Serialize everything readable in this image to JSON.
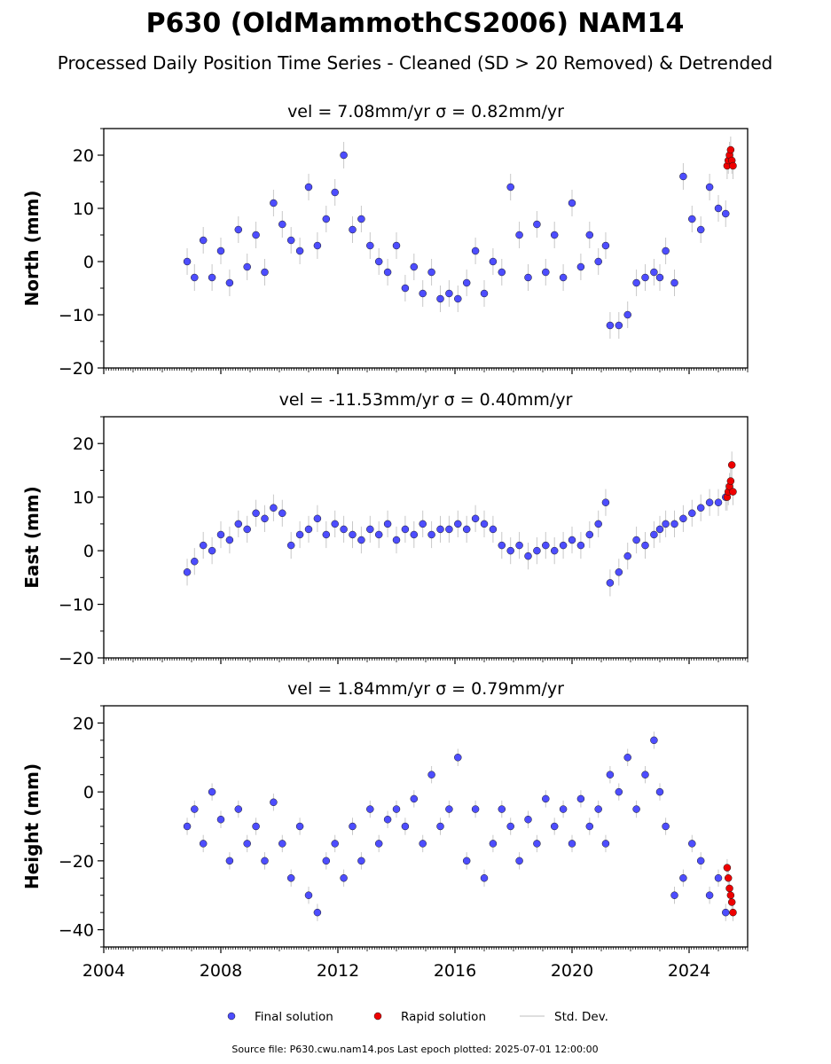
{
  "figure": {
    "title": "P630 (OldMammothCS2006) NAM14",
    "subtitle": "Processed Daily Position Time Series - Cleaned (SD > 20 Removed) & Detrended",
    "footer": "Source file: P630.cwu.nam14.pos  Last epoch plotted: 2025-07-01 12:00:00",
    "legend": [
      {
        "label": "Final solution",
        "color": "#4d4dff",
        "marker": "dot"
      },
      {
        "label": "Rapid solution",
        "color": "#ee0000",
        "marker": "dot"
      },
      {
        "label": "Std. Dev.",
        "color": "#d3d3d3",
        "marker": "line"
      }
    ],
    "colors": {
      "final": "#4d4dff",
      "rapid": "#ee0000",
      "stddev": "#c8c8c8",
      "edge": "#1a1a1a"
    }
  },
  "chart_data": [
    {
      "type": "scatter",
      "ylabel": "North (mm)",
      "velocity_label": "vel = 7.08mm/yr   σ = 0.82mm/yr",
      "xlim": [
        2004,
        2026
      ],
      "ylim": [
        -20,
        25
      ],
      "yticks": [
        -20,
        -10,
        0,
        10,
        20
      ],
      "ytick_labels": [
        "−20",
        "−10",
        "0",
        "10",
        "20"
      ],
      "x_tick_labels_shown": false,
      "series": [
        {
          "name": "Final solution",
          "role": "final",
          "x": [
            2006.85,
            2007.1,
            2007.4,
            2007.7,
            2008.0,
            2008.3,
            2008.6,
            2008.9,
            2009.2,
            2009.5,
            2009.8,
            2010.1,
            2010.4,
            2010.7,
            2011.0,
            2011.3,
            2011.6,
            2011.9,
            2012.2,
            2012.5,
            2012.8,
            2013.1,
            2013.4,
            2013.7,
            2014.0,
            2014.3,
            2014.6,
            2014.9,
            2015.2,
            2015.5,
            2015.8,
            2016.1,
            2016.4,
            2016.7,
            2017.0,
            2017.3,
            2017.6,
            2017.9,
            2018.2,
            2018.5,
            2018.8,
            2019.1,
            2019.4,
            2019.7,
            2020.0,
            2020.3,
            2020.6,
            2020.9,
            2021.15,
            2021.3,
            2021.6,
            2021.9,
            2022.2,
            2022.5,
            2022.8,
            2023.0,
            2023.2,
            2023.5,
            2023.8,
            2024.1,
            2024.4,
            2024.7,
            2025.0,
            2025.25
          ],
          "y": [
            0,
            -3,
            4,
            -3,
            2,
            -4,
            6,
            -1,
            5,
            -2,
            11,
            7,
            4,
            2,
            14,
            3,
            8,
            13,
            20,
            6,
            8,
            3,
            0,
            -2,
            3,
            -5,
            -1,
            -6,
            -2,
            -7,
            -6,
            -7,
            -4,
            2,
            -6,
            0,
            -2,
            14,
            5,
            -3,
            7,
            -2,
            5,
            -3,
            11,
            -1,
            5,
            0,
            3,
            -12,
            -12,
            -10,
            -4,
            -3,
            -2,
            -3,
            2,
            -4,
            16,
            8,
            6,
            14,
            10,
            9
          ],
          "marker_size": 4
        },
        {
          "name": "Rapid solution",
          "role": "rapid",
          "x": [
            2025.3,
            2025.34,
            2025.38,
            2025.42,
            2025.46,
            2025.5
          ],
          "y": [
            18,
            19,
            20,
            21,
            19,
            18
          ],
          "marker_size": 4
        }
      ]
    },
    {
      "type": "scatter",
      "ylabel": "East (mm)",
      "velocity_label": "vel = -11.53mm/yr   σ = 0.40mm/yr",
      "xlim": [
        2004,
        2026
      ],
      "ylim": [
        -20,
        25
      ],
      "yticks": [
        -20,
        -10,
        0,
        10,
        20
      ],
      "ytick_labels": [
        "−20",
        "−10",
        "0",
        "10",
        "20"
      ],
      "x_tick_labels_shown": false,
      "series": [
        {
          "name": "Final solution",
          "role": "final",
          "x": [
            2006.85,
            2007.1,
            2007.4,
            2007.7,
            2008.0,
            2008.3,
            2008.6,
            2008.9,
            2009.2,
            2009.5,
            2009.8,
            2010.1,
            2010.4,
            2010.7,
            2011.0,
            2011.3,
            2011.6,
            2011.9,
            2012.2,
            2012.5,
            2012.8,
            2013.1,
            2013.4,
            2013.7,
            2014.0,
            2014.3,
            2014.6,
            2014.9,
            2015.2,
            2015.5,
            2015.8,
            2016.1,
            2016.4,
            2016.7,
            2017.0,
            2017.3,
            2017.6,
            2017.9,
            2018.2,
            2018.5,
            2018.8,
            2019.1,
            2019.4,
            2019.7,
            2020.0,
            2020.3,
            2020.6,
            2020.9,
            2021.15,
            2021.3,
            2021.6,
            2021.9,
            2022.2,
            2022.5,
            2022.8,
            2023.0,
            2023.2,
            2023.5,
            2023.8,
            2024.1,
            2024.4,
            2024.7,
            2025.0,
            2025.25
          ],
          "y": [
            -4,
            -2,
            1,
            0,
            3,
            2,
            5,
            4,
            7,
            6,
            8,
            7,
            1,
            3,
            4,
            6,
            3,
            5,
            4,
            3,
            2,
            4,
            3,
            5,
            2,
            4,
            3,
            5,
            3,
            4,
            4,
            5,
            4,
            6,
            5,
            4,
            1,
            0,
            1,
            -1,
            0,
            1,
            0,
            1,
            2,
            1,
            3,
            5,
            9,
            -6,
            -4,
            -1,
            2,
            1,
            3,
            4,
            5,
            5,
            6,
            7,
            8,
            9,
            9,
            10
          ],
          "marker_size": 4
        },
        {
          "name": "Rapid solution",
          "role": "rapid",
          "x": [
            2025.3,
            2025.34,
            2025.38,
            2025.42,
            2025.46,
            2025.5
          ],
          "y": [
            10,
            11,
            12,
            13,
            16,
            11
          ],
          "marker_size": 4
        }
      ]
    },
    {
      "type": "scatter",
      "ylabel": "Height (mm)",
      "velocity_label": "vel = 1.84mm/yr   σ = 0.79mm/yr",
      "xlim": [
        2004,
        2026
      ],
      "ylim": [
        -45,
        25
      ],
      "yticks": [
        -40,
        -20,
        0,
        20
      ],
      "ytick_labels": [
        "−40",
        "−20",
        "0",
        "20"
      ],
      "x_tick_labels_shown": true,
      "xticks": [
        2004,
        2008,
        2012,
        2016,
        2020,
        2024
      ],
      "xtick_labels": [
        "2004",
        "2008",
        "2012",
        "2016",
        "2020",
        "2024"
      ],
      "series": [
        {
          "name": "Final solution",
          "role": "final",
          "x": [
            2006.85,
            2007.1,
            2007.4,
            2007.7,
            2008.0,
            2008.3,
            2008.6,
            2008.9,
            2009.2,
            2009.5,
            2009.8,
            2010.1,
            2010.4,
            2010.7,
            2011.0,
            2011.3,
            2011.6,
            2011.9,
            2012.2,
            2012.5,
            2012.8,
            2013.1,
            2013.4,
            2013.7,
            2014.0,
            2014.3,
            2014.6,
            2014.9,
            2015.2,
            2015.5,
            2015.8,
            2016.1,
            2016.4,
            2016.7,
            2017.0,
            2017.3,
            2017.6,
            2017.9,
            2018.2,
            2018.5,
            2018.8,
            2019.1,
            2019.4,
            2019.7,
            2020.0,
            2020.3,
            2020.6,
            2020.9,
            2021.15,
            2021.3,
            2021.6,
            2021.9,
            2022.2,
            2022.5,
            2022.8,
            2023.0,
            2023.2,
            2023.5,
            2023.8,
            2024.1,
            2024.4,
            2024.7,
            2025.0,
            2025.25
          ],
          "y": [
            -10,
            -5,
            -15,
            0,
            -8,
            -20,
            -5,
            -15,
            -10,
            -20,
            -3,
            -15,
            -25,
            -10,
            -30,
            -35,
            -20,
            -15,
            -25,
            -10,
            -20,
            -5,
            -15,
            -8,
            -5,
            -10,
            -2,
            -15,
            5,
            -10,
            -5,
            10,
            -20,
            -5,
            -25,
            -15,
            -5,
            -10,
            -20,
            -8,
            -15,
            -2,
            -10,
            -5,
            -15,
            -2,
            -10,
            -5,
            -15,
            5,
            0,
            10,
            -5,
            5,
            15,
            0,
            -10,
            -30,
            -25,
            -15,
            -20,
            -30,
            -25,
            -35
          ],
          "marker_size": 4
        },
        {
          "name": "Rapid solution",
          "role": "rapid",
          "x": [
            2025.3,
            2025.34,
            2025.38,
            2025.42,
            2025.46,
            2025.5
          ],
          "y": [
            -22,
            -25,
            -28,
            -30,
            -32,
            -35
          ],
          "marker_size": 4
        }
      ]
    }
  ]
}
